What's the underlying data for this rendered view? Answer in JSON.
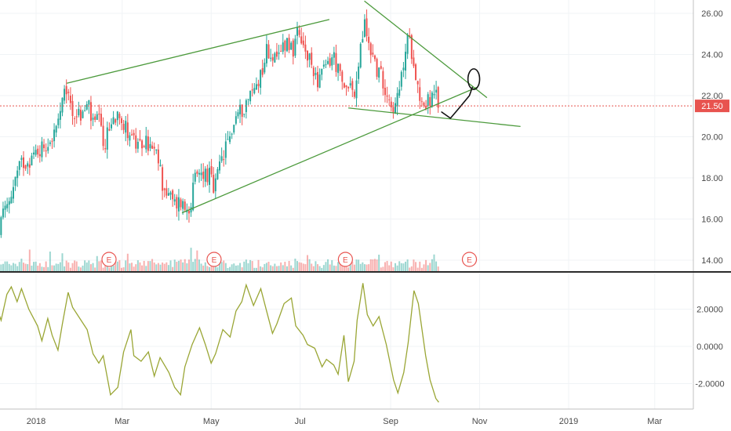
{
  "chart_data": [
    {
      "type": "candlestick",
      "x_ticks": [
        "2018",
        "Mar",
        "May",
        "Jul",
        "Sep",
        "Nov",
        "2019",
        "Mar"
      ],
      "y_ticks": [
        "26.00",
        "24.00",
        "22.00",
        "20.00",
        "18.00",
        "16.00",
        "14.00"
      ],
      "ylim": [
        13.5,
        26.6
      ],
      "last_price": "21.50",
      "last_price_value": 21.5,
      "earnings_markers": [
        "E",
        "E",
        "E",
        "E"
      ],
      "earnings_dates": [
        "2018-02-20",
        "2018-05-03",
        "2018-08-01",
        "2018-10-25"
      ],
      "close_path": [
        [
          "2017-12-01",
          14.0
        ],
        [
          "2017-12-06",
          15.4
        ],
        [
          "2017-12-12",
          16.6
        ],
        [
          "2017-12-18",
          18.0
        ],
        [
          "2017-12-22",
          18.7
        ],
        [
          "2017-12-29",
          19.0
        ],
        [
          "2018-01-05",
          19.5
        ],
        [
          "2018-01-10",
          19.8
        ],
        [
          "2018-01-15",
          20.3
        ],
        [
          "2018-01-18",
          21.3
        ],
        [
          "2018-01-22",
          22.3
        ],
        [
          "2018-01-26",
          21.2
        ],
        [
          "2018-02-01",
          21.0
        ],
        [
          "2018-02-06",
          21.6
        ],
        [
          "2018-02-09",
          20.5
        ],
        [
          "2018-02-13",
          20.9
        ],
        [
          "2018-02-16",
          19.4
        ],
        [
          "2018-02-21",
          20.6
        ],
        [
          "2018-02-27",
          21.4
        ],
        [
          "2018-03-02",
          20.5
        ],
        [
          "2018-03-07",
          20.2
        ],
        [
          "2018-03-12",
          19.3
        ],
        [
          "2018-03-16",
          19.8
        ],
        [
          "2018-03-21",
          19.4
        ],
        [
          "2018-03-26",
          18.8
        ],
        [
          "2018-03-29",
          17.6
        ],
        [
          "2018-04-03",
          17.0
        ],
        [
          "2018-04-06",
          16.7
        ],
        [
          "2018-04-10",
          16.9
        ],
        [
          "2018-04-13",
          16.5
        ],
        [
          "2018-04-17",
          16.8
        ],
        [
          "2018-04-20",
          17.9
        ],
        [
          "2018-04-25",
          18.3
        ],
        [
          "2018-04-30",
          18.1
        ],
        [
          "2018-05-03",
          17.3
        ],
        [
          "2018-05-07",
          18.6
        ],
        [
          "2018-05-11",
          19.4
        ],
        [
          "2018-05-15",
          20.3
        ],
        [
          "2018-05-18",
          21.0
        ],
        [
          "2018-05-22",
          21.3
        ],
        [
          "2018-05-25",
          21.7
        ],
        [
          "2018-05-31",
          22.4
        ],
        [
          "2018-06-05",
          23.3
        ],
        [
          "2018-06-08",
          24.2
        ],
        [
          "2018-06-12",
          24.0
        ],
        [
          "2018-06-15",
          23.5
        ],
        [
          "2018-06-19",
          24.5
        ],
        [
          "2018-06-22",
          24.7
        ],
        [
          "2018-06-27",
          24.2
        ],
        [
          "2018-06-29",
          24.9
        ],
        [
          "2018-07-03",
          24.3
        ],
        [
          "2018-07-06",
          23.8
        ],
        [
          "2018-07-11",
          23.2
        ],
        [
          "2018-07-13",
          22.8
        ],
        [
          "2018-07-17",
          23.1
        ],
        [
          "2018-07-20",
          23.6
        ],
        [
          "2018-07-24",
          23.9
        ],
        [
          "2018-07-26",
          23.4
        ],
        [
          "2018-07-31",
          22.2
        ],
        [
          "2018-08-03",
          22.8
        ],
        [
          "2018-08-08",
          21.8
        ],
        [
          "2018-08-10",
          23.6
        ],
        [
          "2018-08-14",
          25.5
        ],
        [
          "2018-08-16",
          24.8
        ],
        [
          "2018-08-20",
          23.9
        ],
        [
          "2018-08-23",
          23.2
        ],
        [
          "2018-08-27",
          22.7
        ],
        [
          "2018-08-30",
          22.1
        ],
        [
          "2018-09-04",
          21.3
        ],
        [
          "2018-09-07",
          22.2
        ],
        [
          "2018-09-11",
          24.1
        ],
        [
          "2018-09-13",
          24.8
        ],
        [
          "2018-09-17",
          23.8
        ],
        [
          "2018-09-20",
          22.2
        ],
        [
          "2018-09-24",
          21.5
        ],
        [
          "2018-09-27",
          21.8
        ],
        [
          "2018-10-02",
          21.9
        ],
        [
          "2018-10-04",
          21.5
        ]
      ],
      "trendlines": [
        [
          [
            "2018-01-22",
            22.6
          ],
          [
            "2018-07-21",
            25.7
          ]
        ],
        [
          [
            "2018-04-11",
            16.3
          ],
          [
            "2018-10-30",
            22.4
          ]
        ],
        [
          [
            "2018-08-14",
            26.6
          ],
          [
            "2018-11-06",
            21.9
          ]
        ],
        [
          [
            "2018-08-03",
            21.4
          ],
          [
            "2018-11-29",
            20.5
          ]
        ]
      ],
      "drawing_arrow": [
        [
          "2018-10-06",
          21.2
        ],
        [
          "2018-10-12",
          20.9
        ],
        [
          "2018-10-18",
          21.4
        ],
        [
          "2018-10-25",
          22.0
        ],
        [
          "2018-10-27",
          22.4
        ]
      ],
      "drawing_circle": {
        "center": [
          "2018-10-28",
          22.8
        ],
        "rx_days": 4,
        "ry_price": 0.5
      }
    },
    {
      "type": "line",
      "y_ticks": [
        "2.0000",
        "0.0000",
        "-2.0000"
      ],
      "ylim": [
        -3.5,
        3.7
      ],
      "series": [
        {
          "color": "#9aa635",
          "points": [
            [
              "2017-12-01",
              1.2
            ],
            [
              "2017-12-05",
              2.1
            ],
            [
              "2017-12-08",
              1.4
            ],
            [
              "2017-12-12",
              2.8
            ],
            [
              "2017-12-15",
              3.2
            ],
            [
              "2017-12-19",
              2.4
            ],
            [
              "2017-12-22",
              3.1
            ],
            [
              "2017-12-27",
              2.0
            ],
            [
              "2018-01-02",
              1.1
            ],
            [
              "2018-01-05",
              0.3
            ],
            [
              "2018-01-09",
              1.5
            ],
            [
              "2018-01-12",
              0.6
            ],
            [
              "2018-01-16",
              -0.2
            ],
            [
              "2018-01-19",
              1.2
            ],
            [
              "2018-01-23",
              2.9
            ],
            [
              "2018-01-26",
              2.1
            ],
            [
              "2018-01-31",
              1.5
            ],
            [
              "2018-02-05",
              0.9
            ],
            [
              "2018-02-09",
              -0.4
            ],
            [
              "2018-02-13",
              -0.9
            ],
            [
              "2018-02-16",
              -0.5
            ],
            [
              "2018-02-21",
              -2.6
            ],
            [
              "2018-02-26",
              -2.2
            ],
            [
              "2018-03-02",
              -0.3
            ],
            [
              "2018-03-07",
              0.9
            ],
            [
              "2018-03-09",
              -0.5
            ],
            [
              "2018-03-14",
              -0.8
            ],
            [
              "2018-03-19",
              -0.3
            ],
            [
              "2018-03-23",
              -1.6
            ],
            [
              "2018-03-27",
              -0.6
            ],
            [
              "2018-04-02",
              -1.4
            ],
            [
              "2018-04-06",
              -2.2
            ],
            [
              "2018-04-10",
              -2.6
            ],
            [
              "2018-04-13",
              -1.1
            ],
            [
              "2018-04-18",
              0.1
            ],
            [
              "2018-04-23",
              1.0
            ],
            [
              "2018-04-27",
              0.1
            ],
            [
              "2018-05-01",
              -0.9
            ],
            [
              "2018-05-04",
              -0.4
            ],
            [
              "2018-05-09",
              0.9
            ],
            [
              "2018-05-14",
              0.5
            ],
            [
              "2018-05-18",
              1.9
            ],
            [
              "2018-05-22",
              2.4
            ],
            [
              "2018-05-25",
              3.3
            ],
            [
              "2018-05-30",
              2.2
            ],
            [
              "2018-06-04",
              3.1
            ],
            [
              "2018-06-08",
              1.9
            ],
            [
              "2018-06-12",
              0.7
            ],
            [
              "2018-06-15",
              1.2
            ],
            [
              "2018-06-20",
              2.3
            ],
            [
              "2018-06-25",
              2.6
            ],
            [
              "2018-06-28",
              1.1
            ],
            [
              "2018-07-03",
              0.6
            ],
            [
              "2018-07-06",
              0.1
            ],
            [
              "2018-07-11",
              -0.1
            ],
            [
              "2018-07-16",
              -1.1
            ],
            [
              "2018-07-19",
              -0.7
            ],
            [
              "2018-07-24",
              -1.0
            ],
            [
              "2018-07-27",
              -1.5
            ],
            [
              "2018-07-31",
              0.6
            ],
            [
              "2018-08-03",
              -1.9
            ],
            [
              "2018-08-07",
              -0.8
            ],
            [
              "2018-08-09",
              1.4
            ],
            [
              "2018-08-13",
              3.4
            ],
            [
              "2018-08-16",
              1.7
            ],
            [
              "2018-08-20",
              1.1
            ],
            [
              "2018-08-24",
              1.6
            ],
            [
              "2018-08-29",
              0.1
            ],
            [
              "2018-09-03",
              -1.8
            ],
            [
              "2018-09-06",
              -2.5
            ],
            [
              "2018-09-10",
              -1.4
            ],
            [
              "2018-09-13",
              0.2
            ],
            [
              "2018-09-17",
              3.0
            ],
            [
              "2018-09-20",
              2.3
            ],
            [
              "2018-09-25",
              -0.5
            ],
            [
              "2018-09-28",
              -1.8
            ],
            [
              "2018-10-02",
              -2.8
            ],
            [
              "2018-10-04",
              -3.0
            ]
          ]
        }
      ]
    }
  ]
}
